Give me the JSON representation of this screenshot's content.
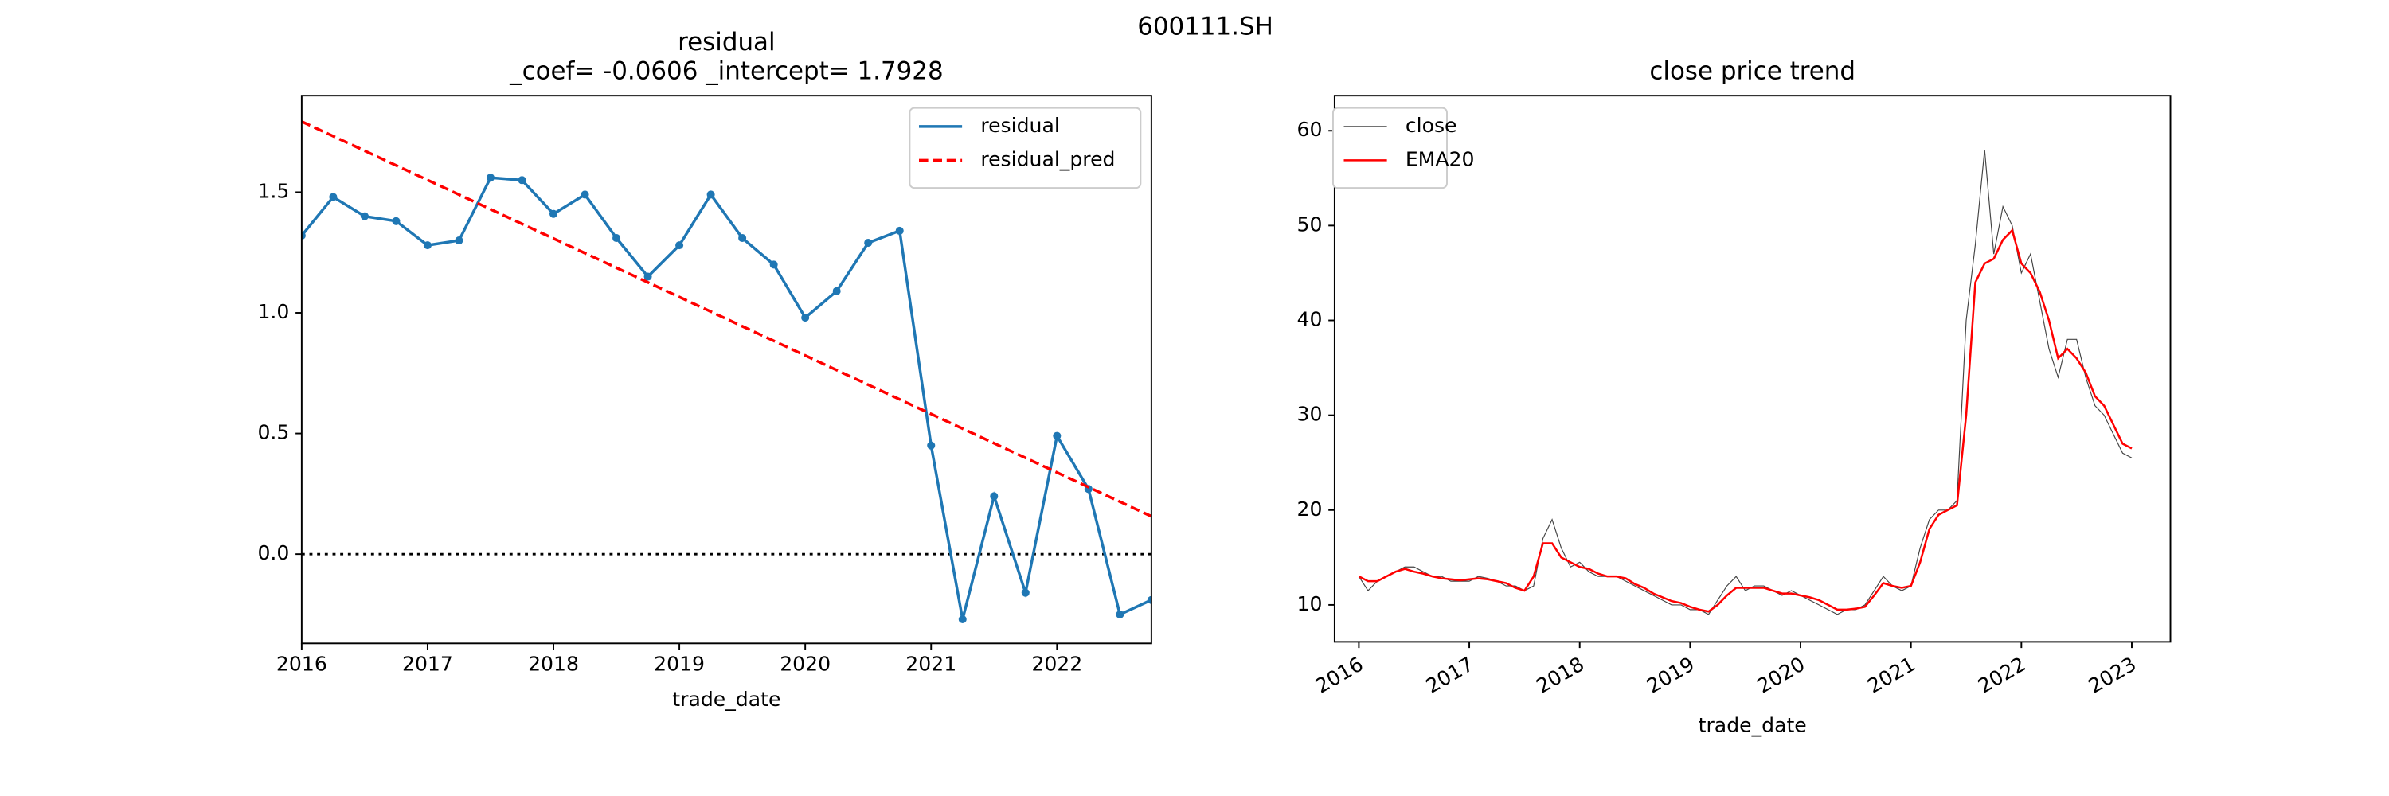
{
  "title": "600111.SH",
  "chart_data": [
    {
      "type": "line",
      "title": "residual",
      "subtitle": "_coef= -0.0606   _intercept= 1.7928",
      "x_label": "trade_date",
      "x": [
        2016,
        2016.25,
        2016.5,
        2016.75,
        2017,
        2017.25,
        2017.5,
        2017.75,
        2018,
        2018.25,
        2018.5,
        2018.75,
        2019,
        2019.25,
        2019.5,
        2019.75,
        2020,
        2020.25,
        2020.5,
        2020.75,
        2021,
        2021.25,
        2021.5,
        2021.75,
        2022,
        2022.25,
        2022.5,
        2022.75
      ],
      "series": [
        {
          "name": "residual",
          "color": "#1f77b4",
          "linestyle": "solid",
          "marker": "o",
          "values": [
            1.32,
            1.48,
            1.4,
            1.38,
            1.28,
            1.3,
            1.56,
            1.55,
            1.41,
            1.49,
            1.31,
            1.15,
            1.28,
            1.49,
            1.31,
            1.2,
            0.98,
            1.09,
            1.29,
            1.34,
            0.45,
            -0.27,
            0.24,
            -0.16,
            0.49,
            0.27,
            -0.25,
            -0.19
          ]
        },
        {
          "name": "residual_pred",
          "color": "#ff0000",
          "linestyle": "dashed",
          "values": [
            1.7928,
            1.7322,
            1.6716,
            1.611,
            1.5504,
            1.4898,
            1.4292,
            1.3686,
            1.308,
            1.2474,
            1.1868,
            1.1262,
            1.0656,
            1.005,
            0.9444,
            0.8838,
            0.8232,
            0.7626,
            0.702,
            0.6414,
            0.5808,
            0.5202,
            0.4596,
            0.399,
            0.3384,
            0.2778,
            0.2172,
            0.1566
          ]
        }
      ],
      "hlines": [
        {
          "y": 0,
          "color": "#000000",
          "linestyle": "dotted"
        }
      ],
      "xlim": [
        2016,
        2022.75
      ],
      "xticks": [
        2016,
        2017,
        2018,
        2019,
        2020,
        2021,
        2022
      ],
      "ylim": [
        -0.37,
        1.9
      ],
      "yticks": [
        {
          "value": 0,
          "label": "0.0"
        },
        {
          "value": 0.5,
          "label": "0.5"
        },
        {
          "value": 1,
          "label": "1.0"
        },
        {
          "value": 1.5,
          "label": "1.5"
        }
      ],
      "legend": "upper right",
      "xtick_rotation": 0
    },
    {
      "type": "line",
      "title": "close price trend",
      "x_label": "trade_date",
      "x": [
        2016,
        2016.083,
        2016.167,
        2016.25,
        2016.333,
        2016.417,
        2016.5,
        2016.583,
        2016.667,
        2016.75,
        2016.833,
        2016.917,
        2017,
        2017.083,
        2017.167,
        2017.25,
        2017.333,
        2017.417,
        2017.5,
        2017.583,
        2017.667,
        2017.75,
        2017.833,
        2017.917,
        2018,
        2018.083,
        2018.167,
        2018.25,
        2018.333,
        2018.417,
        2018.5,
        2018.583,
        2018.667,
        2018.75,
        2018.833,
        2018.917,
        2019,
        2019.083,
        2019.167,
        2019.25,
        2019.333,
        2019.417,
        2019.5,
        2019.583,
        2019.667,
        2019.75,
        2019.833,
        2019.917,
        2020,
        2020.083,
        2020.167,
        2020.25,
        2020.333,
        2020.417,
        2020.5,
        2020.583,
        2020.667,
        2020.75,
        2020.833,
        2020.917,
        2021,
        2021.083,
        2021.167,
        2021.25,
        2021.333,
        2021.417,
        2021.5,
        2021.583,
        2021.667,
        2021.75,
        2021.833,
        2021.917,
        2022,
        2022.083,
        2022.167,
        2022.25,
        2022.333,
        2022.417,
        2022.5,
        2022.583,
        2022.667,
        2022.75,
        2022.833,
        2022.917,
        2023
      ],
      "series": [
        {
          "name": "close",
          "color": "#444444",
          "linestyle": "solid",
          "linewidth": 0.6,
          "values": [
            13,
            11.5,
            12.5,
            13,
            13.5,
            14,
            14,
            13.5,
            13,
            13,
            12.5,
            12.5,
            12.5,
            13,
            12.8,
            12.5,
            12,
            12,
            11.5,
            12,
            17,
            19,
            16,
            14,
            14.5,
            13.5,
            13,
            13,
            13,
            12.5,
            12,
            11.5,
            11,
            10.5,
            10,
            10,
            9.5,
            9.5,
            9,
            10.5,
            12,
            13,
            11.5,
            12,
            12,
            11.5,
            11,
            11.5,
            11,
            10.5,
            10,
            9.5,
            9,
            9.5,
            9.5,
            10,
            11.5,
            13,
            12,
            11.5,
            12,
            16,
            19,
            20,
            20,
            21,
            40,
            48,
            58,
            47,
            52,
            50,
            45,
            47,
            42,
            37,
            34,
            38,
            38,
            34,
            31,
            30,
            28,
            26,
            25.5
          ]
        },
        {
          "name": "EMA20",
          "color": "#ff0000",
          "linestyle": "solid",
          "linewidth": 1.3,
          "values": [
            13,
            12.5,
            12.5,
            13,
            13.5,
            13.8,
            13.5,
            13.3,
            13,
            12.8,
            12.7,
            12.6,
            12.7,
            12.8,
            12.7,
            12.5,
            12.3,
            11.8,
            11.5,
            13,
            16.5,
            16.5,
            15,
            14.5,
            14,
            13.8,
            13.3,
            13,
            13,
            12.8,
            12.2,
            11.8,
            11.2,
            10.8,
            10.4,
            10.2,
            9.8,
            9.5,
            9.3,
            10,
            11,
            11.8,
            11.8,
            11.8,
            11.8,
            11.5,
            11.2,
            11.2,
            11,
            10.8,
            10.5,
            10,
            9.5,
            9.5,
            9.6,
            9.8,
            11,
            12.3,
            12,
            11.8,
            12,
            14.5,
            18,
            19.5,
            20,
            20.5,
            30,
            44,
            46,
            46.5,
            48.5,
            49.5,
            46,
            45,
            43,
            40,
            36,
            37,
            36,
            34.5,
            32,
            31,
            29,
            27,
            26.5
          ]
        }
      ],
      "xlim": [
        2015.78,
        2023.35
      ],
      "xticks": [
        2016,
        2017,
        2018,
        2019,
        2020,
        2021,
        2022,
        2023
      ],
      "ylim": [
        6.1,
        63.7
      ],
      "yticks": [
        10,
        20,
        30,
        40,
        50,
        60
      ],
      "legend": "upper left",
      "xtick_rotation": -30
    }
  ]
}
